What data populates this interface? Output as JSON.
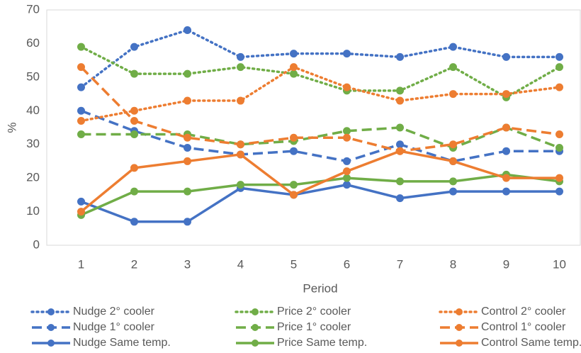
{
  "chart_data": {
    "type": "line",
    "x_label": "Period",
    "y_label": "%",
    "x": [
      1,
      2,
      3,
      4,
      5,
      6,
      7,
      8,
      9,
      10
    ],
    "xlim": [
      0.5,
      10.5
    ],
    "xticks": [
      1,
      2,
      3,
      4,
      5,
      6,
      7,
      8,
      9,
      10
    ],
    "ylim": [
      0,
      70
    ],
    "yticks": [
      0,
      10,
      20,
      30,
      40,
      50,
      60,
      70
    ],
    "grid": false,
    "legend": "bottom",
    "series": [
      {
        "name": "Nudge 2° cooler",
        "color": "#4472c4",
        "dash": "dotted",
        "values": [
          47,
          59,
          64,
          56,
          57,
          57,
          56,
          59,
          56,
          56
        ]
      },
      {
        "name": "Nudge 1° cooler",
        "color": "#4472c4",
        "dash": "dashed",
        "values": [
          40,
          34,
          29,
          27,
          28,
          25,
          30,
          25,
          28,
          28
        ]
      },
      {
        "name": "Nudge Same temp.",
        "color": "#4472c4",
        "dash": "solid",
        "values": [
          13,
          7,
          7,
          17,
          15,
          18,
          14,
          16,
          16,
          16
        ]
      },
      {
        "name": "Price 2° cooler",
        "color": "#70ad47",
        "dash": "dotted",
        "values": [
          59,
          51,
          51,
          53,
          51,
          46,
          46,
          53,
          44,
          53
        ]
      },
      {
        "name": "Price 1° cooler",
        "color": "#70ad47",
        "dash": "dashed",
        "values": [
          33,
          33,
          33,
          30,
          31,
          34,
          35,
          29,
          35,
          29
        ]
      },
      {
        "name": "Price Same temp.",
        "color": "#70ad47",
        "dash": "solid",
        "values": [
          9,
          16,
          16,
          18,
          18,
          20,
          19,
          19,
          21,
          19
        ]
      },
      {
        "name": "Control 2° cooler",
        "color": "#ed7d31",
        "dash": "dotted",
        "values": [
          37,
          40,
          43,
          43,
          53,
          47,
          43,
          45,
          45,
          47
        ]
      },
      {
        "name": "Control 1° cooler",
        "color": "#ed7d31",
        "dash": "dashed",
        "values": [
          53,
          37,
          32,
          30,
          32,
          32,
          28,
          30,
          35,
          33
        ]
      },
      {
        "name": "Control Same temp.",
        "color": "#ed7d31",
        "dash": "solid",
        "values": [
          10,
          23,
          25,
          27,
          15,
          22,
          28,
          25,
          20,
          20
        ]
      }
    ]
  }
}
